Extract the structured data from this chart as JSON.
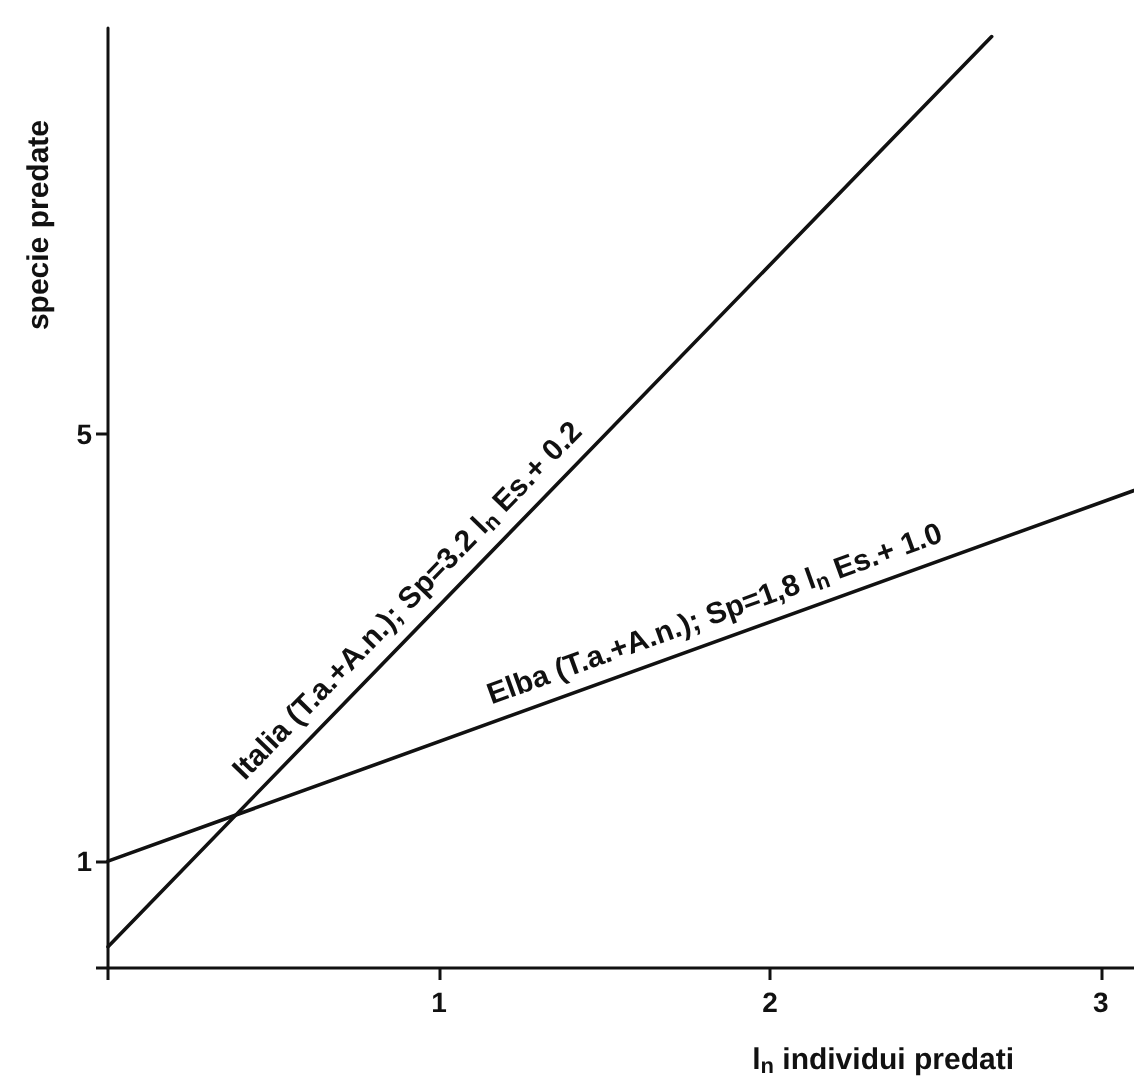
{
  "chart_data": {
    "type": "line",
    "xlabel": "l$_{n}$ individui predati",
    "ylabel": "specie predate",
    "xlim": [
      0,
      3.1
    ],
    "ylim": [
      0,
      8.8
    ],
    "xticks": [
      {
        "value": 0,
        "label": null
      },
      1,
      2,
      3
    ],
    "yticks": [
      {
        "value": 0,
        "label": null
      },
      1,
      5
    ],
    "series": [
      {
        "name": "Italia (T.a.+A.n.); Sp=3.2 l$_{n}$ Es.+ 0.2",
        "color": "#111111",
        "x": [
          0,
          2.67
        ],
        "values": [
          0.2,
          8.72
        ]
      },
      {
        "name": "Elba (T.a.+A.n.); Sp=1,8 l$_{n}$ Es.+ 1.0",
        "color": "#111111",
        "x": [
          0,
          3.1
        ],
        "values": [
          1.0,
          4.47
        ]
      }
    ],
    "grid": false,
    "legend": false,
    "marker": "none",
    "line_style": "solid"
  }
}
